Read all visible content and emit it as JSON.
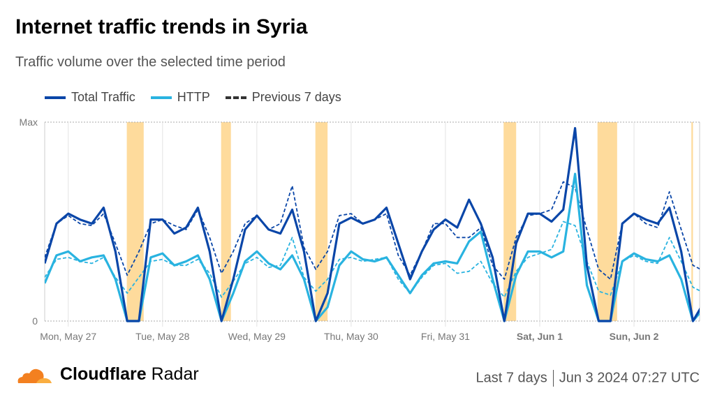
{
  "title": "Internet traffic trends in Syria",
  "subtitle": "Traffic volume over the selected time period",
  "legend": [
    {
      "label": "Total Traffic",
      "color": "#0a46a8"
    },
    {
      "label": "HTTP",
      "color": "#29b3e0"
    },
    {
      "label": "Previous 7 days",
      "color": "#333"
    }
  ],
  "footer": {
    "brand_bold": "Cloudflare",
    "brand_rest": "Radar",
    "range": "Last 7 days",
    "timestamp": "Jun 3 2024 07:27 UTC"
  },
  "chart_data": {
    "type": "line",
    "title": "Internet traffic trends in Syria",
    "ylabel": "",
    "xlabel": "",
    "y_tick_labels": [
      "0",
      "Max"
    ],
    "ylim": [
      0,
      100
    ],
    "x_unit": "hours since Mon May 27 00:00 UTC",
    "xlim": [
      -6,
      160.7
    ],
    "x_ticks": [
      {
        "hour": 0,
        "label": "Mon, May 27",
        "bold": false
      },
      {
        "hour": 24,
        "label": "Tue, May 28",
        "bold": false
      },
      {
        "hour": 48,
        "label": "Wed, May 29",
        "bold": false
      },
      {
        "hour": 72,
        "label": "Thu, May 30",
        "bold": false
      },
      {
        "hour": 96,
        "label": "Fri, May 31",
        "bold": false
      },
      {
        "hour": 120,
        "label": "Sat, Jun 1",
        "bold": true
      },
      {
        "hour": 144,
        "label": "Sun, Jun 2",
        "bold": true
      }
    ],
    "start_hour": -6,
    "step_hours": 3,
    "outage_windows_hours": [
      [
        14.9,
        19.2
      ],
      [
        38.9,
        41.4
      ],
      [
        62.9,
        66
      ],
      [
        110.8,
        114
      ],
      [
        134.7,
        139.7
      ],
      [
        158.6,
        159
      ]
    ],
    "series": [
      {
        "name": "Total Traffic",
        "color": "#0a46a8",
        "dashed": false,
        "values": [
          29,
          49,
          54,
          51,
          49,
          57,
          35,
          0,
          0,
          51,
          51,
          44,
          47,
          57,
          35,
          0,
          21,
          46,
          53,
          46,
          44,
          56,
          35,
          0,
          14,
          49,
          52,
          49,
          51,
          57,
          39,
          21,
          35,
          46,
          51,
          47,
          61,
          49,
          32,
          0,
          39,
          54,
          54,
          50,
          56,
          97,
          28,
          0,
          0,
          49,
          54,
          51,
          49,
          57,
          35,
          0,
          10
        ]
      },
      {
        "name": "HTTP",
        "color": "#29b3e0",
        "dashed": false,
        "values": [
          19,
          33,
          35,
          30,
          32,
          33,
          21,
          0,
          0,
          32,
          34,
          28,
          30,
          33,
          21,
          0,
          14,
          30,
          35,
          29,
          26,
          33,
          21,
          0,
          7,
          28,
          35,
          31,
          30,
          32,
          23,
          14,
          23,
          29,
          30,
          29,
          40,
          45,
          21,
          0,
          23,
          35,
          35,
          32,
          35,
          74,
          18,
          0,
          0,
          30,
          34,
          31,
          30,
          33,
          21,
          0,
          7
        ]
      },
      {
        "name": "Previous 7 days",
        "color": "#0a46a8",
        "dashed": true,
        "values": [
          32,
          49,
          53,
          49,
          48,
          54,
          39,
          23,
          35,
          49,
          51,
          48,
          46,
          56,
          42,
          24,
          35,
          49,
          53,
          46,
          49,
          68,
          37,
          26,
          35,
          53,
          54,
          49,
          51,
          54,
          33,
          23,
          35,
          49,
          49,
          42,
          42,
          47,
          28,
          21,
          42,
          53,
          54,
          56,
          70,
          67,
          46,
          26,
          21,
          49,
          54,
          49,
          47,
          65,
          46,
          28,
          25
        ]
      },
      {
        "name": "Previous 7 days HTTP",
        "color": "#29b3e0",
        "dashed": true,
        "values": [
          22,
          31,
          32,
          30,
          29,
          32,
          22,
          14,
          22,
          30,
          31,
          28,
          28,
          31,
          24,
          12,
          20,
          29,
          32,
          27,
          28,
          42,
          22,
          15,
          21,
          31,
          32,
          30,
          31,
          32,
          21,
          14,
          22,
          28,
          29,
          24,
          25,
          30,
          19,
          12,
          25,
          32,
          34,
          36,
          50,
          48,
          30,
          15,
          13,
          30,
          33,
          30,
          29,
          42,
          30,
          17,
          14
        ]
      }
    ]
  }
}
